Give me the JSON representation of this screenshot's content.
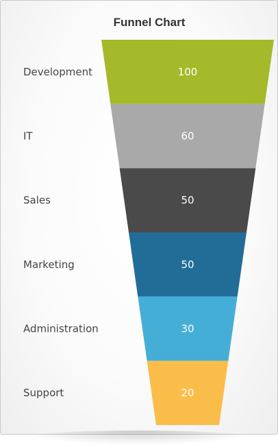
{
  "chart_data": {
    "type": "funnel",
    "title": "Funnel Chart",
    "categories": [
      "Development",
      "IT",
      "Sales",
      "Marketing",
      "Administration",
      "Support"
    ],
    "values": [
      100,
      60,
      50,
      50,
      30,
      20
    ],
    "colors": [
      "#a5b92b",
      "#a9a9a9",
      "#4a4a4a",
      "#226d97",
      "#45aed6",
      "#fbbd4a"
    ]
  }
}
